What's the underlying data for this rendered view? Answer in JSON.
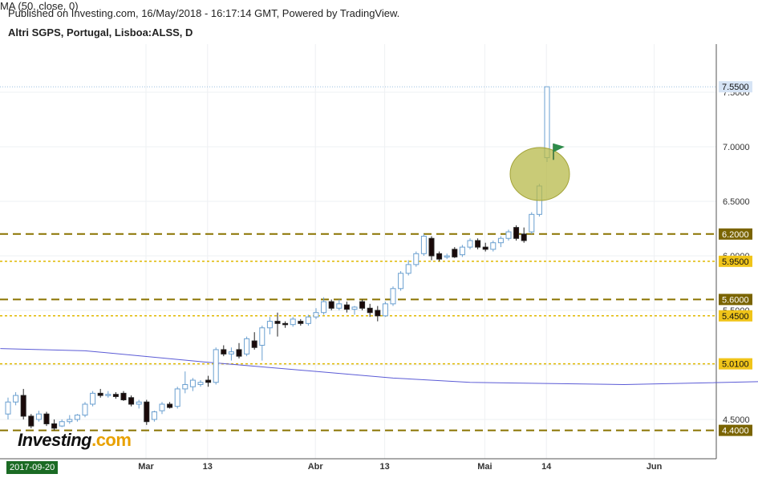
{
  "header": {
    "published": "Published on Investing.com, 16/May/2018 - 16:17:14 GMT, Powered by TradingView.",
    "title": "Altri SGPS, Portugal, Lisboa:ALSS, D",
    "indicator": "MA (50, close, 0)"
  },
  "logo": {
    "text": "Investing",
    "suffix": ".com"
  },
  "date_badge": "2017-09-20",
  "colors": {
    "up_fill": "#ffffff",
    "up_stroke": "#6a9fd0",
    "down_fill": "#1a0a0a",
    "ma": "#5b5bd6",
    "support_dash": "#8a7300",
    "minor_dash": "#e0b800",
    "badge_dark": "#7a6400",
    "badge_yellow": "#f0c419",
    "price_badge": "#d6e4f5",
    "highlight": "#b7b94a"
  },
  "chart_data": {
    "type": "candlestick",
    "title": "Altri SGPS, Portugal, Lisboa:ALSS, D",
    "y_ticks": [
      "4.5000",
      "5.0000",
      "5.5000",
      "6.0000",
      "6.5000",
      "7.0000",
      "7.5000"
    ],
    "ylim": [
      4.25,
      7.8
    ],
    "x_ticks": [
      {
        "label": "Mar",
        "date": "2018-03-01"
      },
      {
        "label": "13",
        "date": "2018-03-13"
      },
      {
        "label": "Abr",
        "date": "2018-04-02"
      },
      {
        "label": "13",
        "date": "2018-04-13"
      },
      {
        "label": "Mai",
        "date": "2018-05-02"
      },
      {
        "label": "14",
        "date": "2018-05-14"
      },
      {
        "label": "Jun",
        "date": "2018-06-01"
      }
    ],
    "last_price": "7.5500",
    "levels": [
      {
        "value": 6.2,
        "label": "6.2000",
        "style": "major"
      },
      {
        "value": 5.95,
        "label": "5.9500",
        "style": "minor"
      },
      {
        "value": 5.6,
        "label": "5.6000",
        "style": "major"
      },
      {
        "value": 5.45,
        "label": "5.4500",
        "style": "minor"
      },
      {
        "value": 5.01,
        "label": "5.0100",
        "style": "minor"
      },
      {
        "value": 4.4,
        "label": "4.4000",
        "style": "major"
      }
    ],
    "candles": [
      [
        4.55,
        4.7,
        4.5,
        4.66
      ],
      [
        4.66,
        4.75,
        4.63,
        4.72
      ],
      [
        4.72,
        4.78,
        4.5,
        4.53
      ],
      [
        4.53,
        4.55,
        4.42,
        4.44
      ],
      [
        4.5,
        4.58,
        4.48,
        4.55
      ],
      [
        4.55,
        4.57,
        4.44,
        4.46
      ],
      [
        4.46,
        4.5,
        4.4,
        4.42
      ],
      [
        4.44,
        4.5,
        4.43,
        4.48
      ],
      [
        4.48,
        4.54,
        4.46,
        4.5
      ],
      [
        4.5,
        4.55,
        4.48,
        4.54
      ],
      [
        4.54,
        4.66,
        4.52,
        4.64
      ],
      [
        4.64,
        4.76,
        4.62,
        4.74
      ],
      [
        4.74,
        4.78,
        4.7,
        4.72
      ],
      [
        4.72,
        4.76,
        4.7,
        4.73
      ],
      [
        4.73,
        4.75,
        4.69,
        4.71
      ],
      [
        4.74,
        4.76,
        4.67,
        4.68
      ],
      [
        4.7,
        4.72,
        4.62,
        4.64
      ],
      [
        4.64,
        4.68,
        4.6,
        4.66
      ],
      [
        4.66,
        4.68,
        4.45,
        4.48
      ],
      [
        4.5,
        4.58,
        4.48,
        4.57
      ],
      [
        4.58,
        4.66,
        4.55,
        4.64
      ],
      [
        4.64,
        4.66,
        4.6,
        4.61
      ],
      [
        4.62,
        4.8,
        4.6,
        4.78
      ],
      [
        4.78,
        4.94,
        4.74,
        4.82
      ],
      [
        4.8,
        4.88,
        4.76,
        4.86
      ],
      [
        4.82,
        4.86,
        4.8,
        4.84
      ],
      [
        4.86,
        4.9,
        4.8,
        4.84
      ],
      [
        4.84,
        5.16,
        4.82,
        5.14
      ],
      [
        5.14,
        5.18,
        5.08,
        5.1
      ],
      [
        5.1,
        5.16,
        5.04,
        5.12
      ],
      [
        5.14,
        5.2,
        5.06,
        5.08
      ],
      [
        5.1,
        5.26,
        5.08,
        5.24
      ],
      [
        5.22,
        5.3,
        5.14,
        5.16
      ],
      [
        5.18,
        5.36,
        5.04,
        5.34
      ],
      [
        5.34,
        5.44,
        5.28,
        5.4
      ],
      [
        5.4,
        5.48,
        5.26,
        5.38
      ],
      [
        5.38,
        5.4,
        5.34,
        5.37
      ],
      [
        5.37,
        5.44,
        5.35,
        5.42
      ],
      [
        5.4,
        5.42,
        5.36,
        5.38
      ],
      [
        5.38,
        5.46,
        5.36,
        5.44
      ],
      [
        5.44,
        5.52,
        5.42,
        5.48
      ],
      [
        5.48,
        5.62,
        5.46,
        5.58
      ],
      [
        5.58,
        5.6,
        5.5,
        5.52
      ],
      [
        5.52,
        5.6,
        5.5,
        5.56
      ],
      [
        5.55,
        5.58,
        5.48,
        5.51
      ],
      [
        5.51,
        5.54,
        5.46,
        5.53
      ],
      [
        5.58,
        5.6,
        5.5,
        5.52
      ],
      [
        5.52,
        5.56,
        5.44,
        5.48
      ],
      [
        5.5,
        5.54,
        5.4,
        5.45
      ],
      [
        5.45,
        5.58,
        5.44,
        5.56
      ],
      [
        5.56,
        5.72,
        5.54,
        5.7
      ],
      [
        5.7,
        5.86,
        5.68,
        5.84
      ],
      [
        5.84,
        5.96,
        5.82,
        5.92
      ],
      [
        5.92,
        6.04,
        5.9,
        6.02
      ],
      [
        6.02,
        6.2,
        6.0,
        6.18
      ],
      [
        6.16,
        6.18,
        5.96,
        6.0
      ],
      [
        6.02,
        6.04,
        5.95,
        5.97
      ],
      [
        5.99,
        6.02,
        5.97,
        6.0
      ],
      [
        6.06,
        6.08,
        5.98,
        5.99
      ],
      [
        6.01,
        6.1,
        5.99,
        6.08
      ],
      [
        6.08,
        6.16,
        6.06,
        6.14
      ],
      [
        6.14,
        6.16,
        6.06,
        6.08
      ],
      [
        6.08,
        6.12,
        6.04,
        6.06
      ],
      [
        6.06,
        6.14,
        6.04,
        6.12
      ],
      [
        6.12,
        6.18,
        6.08,
        6.16
      ],
      [
        6.16,
        6.24,
        6.14,
        6.22
      ],
      [
        6.26,
        6.28,
        6.14,
        6.16
      ],
      [
        6.2,
        6.26,
        6.12,
        6.14
      ],
      [
        6.22,
        6.4,
        6.2,
        6.38
      ],
      [
        6.38,
        6.66,
        6.36,
        6.64
      ],
      [
        6.9,
        7.55,
        6.86,
        7.55
      ]
    ],
    "ma": [
      [
        -1,
        5.15
      ],
      [
        10,
        5.13
      ],
      [
        25,
        5.03
      ],
      [
        40,
        4.94
      ],
      [
        50,
        4.88
      ],
      [
        60,
        4.84
      ],
      [
        80,
        4.82
      ],
      [
        100,
        4.85
      ],
      [
        115,
        4.9
      ],
      [
        130,
        4.98
      ],
      [
        145,
        5.1
      ],
      [
        160,
        5.24
      ],
      [
        170,
        5.34
      ],
      [
        182,
        5.45
      ],
      [
        194,
        5.52
      ],
      [
        205,
        5.57
      ]
    ],
    "flag_label": "flag"
  }
}
